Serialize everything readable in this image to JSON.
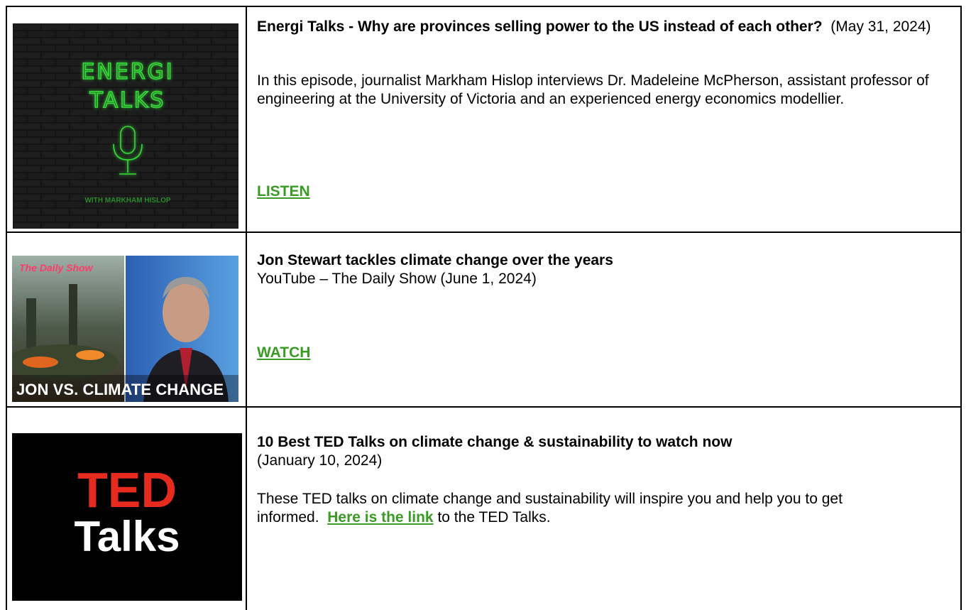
{
  "rows": [
    {
      "image": {
        "lines": [
          "ENERGI",
          "TALKS"
        ],
        "caption": "WITH MARKHAM HISLOP"
      },
      "title": "Energi Talks - Why are provinces selling power to the US instead of each other?",
      "date": "(May 31, 2024)",
      "description": "In this episode, journalist Markham Hislop interviews Dr. Madeleine McPherson, assistant professor of engineering at the University of Victoria and an experienced energy economics modellier.",
      "link": "LISTEN"
    },
    {
      "image": {
        "logo": "The Daily Show",
        "caption": "JON VS. CLIMATE CHANGE"
      },
      "title": "Jon Stewart tackles climate change over the years",
      "source": "YouTube – The Daily Show (June 1, 2024)",
      "link": "WATCH"
    },
    {
      "image": {
        "lines": [
          "TED",
          "Talks"
        ]
      },
      "title": "10 Best TED Talks on climate change & sustainability to watch now",
      "date": "(January 10, 2024)",
      "description": [
        "These TED talks on climate change and sustainability will inspire you and help you to get informed.",
        "Here is the link",
        "to the TED Talks."
      ]
    }
  ]
}
